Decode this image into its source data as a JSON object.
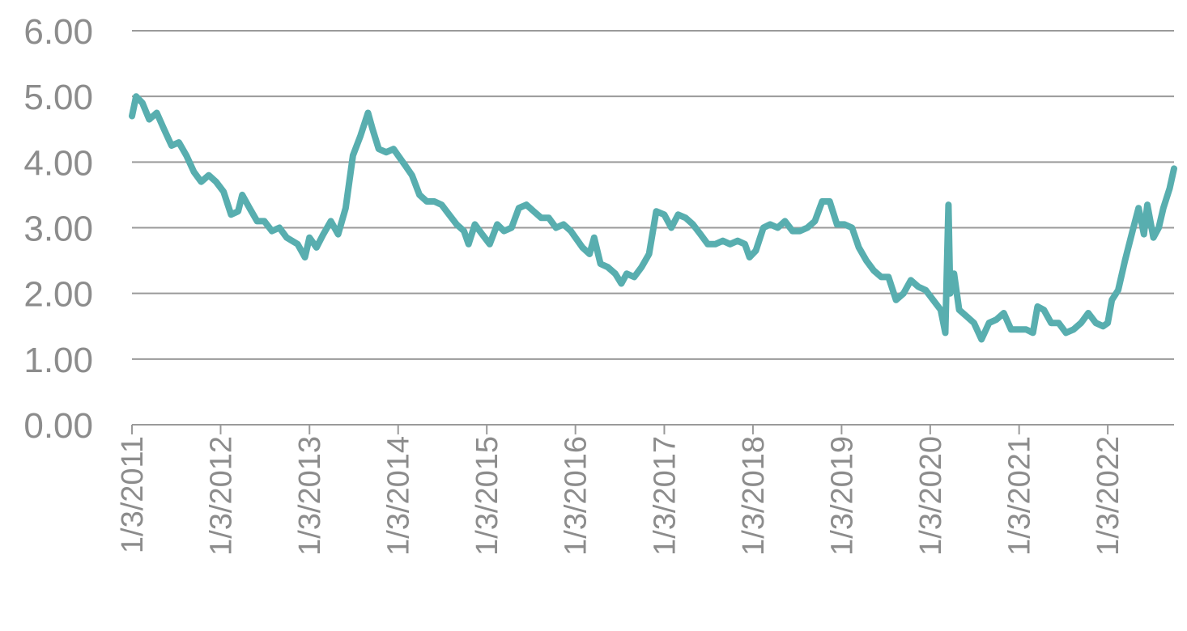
{
  "chart_data": {
    "type": "line",
    "color": "#58aeaf",
    "grid": true,
    "ylim": [
      0,
      6
    ],
    "yticks": [
      {
        "value": 0,
        "label": "0.00"
      },
      {
        "value": 1,
        "label": "1.00"
      },
      {
        "value": 2,
        "label": "2.00"
      },
      {
        "value": 3,
        "label": "3.00"
      },
      {
        "value": 4,
        "label": "4.00"
      },
      {
        "value": 5,
        "label": "5.00"
      },
      {
        "value": 6,
        "label": "6.00"
      }
    ],
    "xlim": [
      "2011-01-03",
      "2022-10-03"
    ],
    "xticks": [
      {
        "value": "2011-01-03",
        "label": "1/3/2011"
      },
      {
        "value": "2012-01-03",
        "label": "1/3/2012"
      },
      {
        "value": "2013-01-03",
        "label": "1/3/2013"
      },
      {
        "value": "2014-01-03",
        "label": "1/3/2014"
      },
      {
        "value": "2015-01-03",
        "label": "1/3/2015"
      },
      {
        "value": "2016-01-03",
        "label": "1/3/2016"
      },
      {
        "value": "2017-01-03",
        "label": "1/3/2017"
      },
      {
        "value": "2018-01-03",
        "label": "1/3/2018"
      },
      {
        "value": "2019-01-03",
        "label": "1/3/2019"
      },
      {
        "value": "2020-01-03",
        "label": "1/3/2020"
      },
      {
        "value": "2021-01-03",
        "label": "1/3/2021"
      },
      {
        "value": "2022-01-03",
        "label": "1/3/2022"
      }
    ],
    "x": [
      "2011-01-03",
      "2011-01-20",
      "2011-02-15",
      "2011-03-15",
      "2011-04-15",
      "2011-05-15",
      "2011-06-15",
      "2011-07-15",
      "2011-08-15",
      "2011-09-15",
      "2011-10-15",
      "2011-11-15",
      "2011-12-15",
      "2012-01-15",
      "2012-02-15",
      "2012-03-15",
      "2012-04-01",
      "2012-05-01",
      "2012-06-01",
      "2012-07-01",
      "2012-08-01",
      "2012-09-01",
      "2012-10-01",
      "2012-11-15",
      "2012-12-15",
      "2013-01-03",
      "2013-02-01",
      "2013-03-01",
      "2013-04-01",
      "2013-05-01",
      "2013-06-01",
      "2013-07-01",
      "2013-08-01",
      "2013-09-01",
      "2013-09-20",
      "2013-10-15",
      "2013-11-15",
      "2013-12-15",
      "2014-01-03",
      "2014-02-01",
      "2014-03-01",
      "2014-04-01",
      "2014-05-01",
      "2014-06-01",
      "2014-07-01",
      "2014-08-01",
      "2014-09-01",
      "2014-10-01",
      "2014-10-20",
      "2014-11-15",
      "2014-12-15",
      "2015-01-15",
      "2015-02-15",
      "2015-03-15",
      "2015-04-15",
      "2015-05-15",
      "2015-06-15",
      "2015-07-15",
      "2015-08-15",
      "2015-09-15",
      "2015-10-15",
      "2015-11-15",
      "2015-12-15",
      "2016-01-03",
      "2016-02-01",
      "2016-03-01",
      "2016-03-20",
      "2016-04-15",
      "2016-05-15",
      "2016-06-15",
      "2016-07-10",
      "2016-08-01",
      "2016-09-01",
      "2016-10-01",
      "2016-11-01",
      "2016-12-01",
      "2017-01-03",
      "2017-02-01",
      "2017-03-01",
      "2017-04-01",
      "2017-05-01",
      "2017-06-01",
      "2017-07-01",
      "2017-08-01",
      "2017-09-01",
      "2017-10-01",
      "2017-11-01",
      "2017-12-01",
      "2017-12-20",
      "2018-01-15",
      "2018-02-15",
      "2018-03-15",
      "2018-04-15",
      "2018-05-15",
      "2018-06-15",
      "2018-07-15",
      "2018-08-15",
      "2018-09-15",
      "2018-10-15",
      "2018-11-15",
      "2018-12-15",
      "2019-01-15",
      "2019-02-15",
      "2019-03-15",
      "2019-04-15",
      "2019-05-15",
      "2019-06-15",
      "2019-07-15",
      "2019-08-15",
      "2019-09-15",
      "2019-10-15",
      "2019-11-15",
      "2019-12-15",
      "2020-01-15",
      "2020-02-15",
      "2020-03-05",
      "2020-03-18",
      "2020-03-25",
      "2020-04-10",
      "2020-05-01",
      "2020-06-01",
      "2020-07-01",
      "2020-08-01",
      "2020-09-01",
      "2020-10-01",
      "2020-11-01",
      "2020-12-01",
      "2021-01-03",
      "2021-02-01",
      "2021-03-01",
      "2021-03-20",
      "2021-04-15",
      "2021-05-15",
      "2021-06-15",
      "2021-07-15",
      "2021-08-15",
      "2021-09-15",
      "2021-10-15",
      "2021-11-15",
      "2021-12-15",
      "2022-01-03",
      "2022-01-20",
      "2022-02-15",
      "2022-03-15",
      "2022-04-15",
      "2022-05-10",
      "2022-06-01",
      "2022-06-15",
      "2022-07-10",
      "2022-08-01",
      "2022-08-20",
      "2022-09-15",
      "2022-10-03"
    ],
    "values": [
      4.7,
      5.0,
      4.9,
      4.65,
      4.75,
      4.5,
      4.25,
      4.3,
      4.1,
      3.85,
      3.7,
      3.8,
      3.7,
      3.55,
      3.2,
      3.25,
      3.5,
      3.3,
      3.1,
      3.1,
      2.95,
      3.0,
      2.85,
      2.75,
      2.55,
      2.85,
      2.7,
      2.9,
      3.1,
      2.9,
      3.3,
      4.1,
      4.4,
      4.75,
      4.5,
      4.2,
      4.15,
      4.2,
      4.1,
      3.95,
      3.8,
      3.5,
      3.4,
      3.4,
      3.35,
      3.2,
      3.05,
      2.95,
      2.75,
      3.05,
      2.9,
      2.75,
      3.05,
      2.95,
      3.0,
      3.3,
      3.35,
      3.25,
      3.15,
      3.15,
      3.0,
      3.05,
      2.95,
      2.85,
      2.7,
      2.6,
      2.85,
      2.45,
      2.4,
      2.3,
      2.15,
      2.3,
      2.25,
      2.4,
      2.6,
      3.25,
      3.2,
      3.0,
      3.2,
      3.15,
      3.05,
      2.9,
      2.75,
      2.75,
      2.8,
      2.75,
      2.8,
      2.75,
      2.55,
      2.65,
      3.0,
      3.05,
      3.0,
      3.1,
      2.95,
      2.95,
      3.0,
      3.1,
      3.4,
      3.4,
      3.05,
      3.05,
      3.0,
      2.7,
      2.5,
      2.35,
      2.25,
      2.25,
      1.9,
      2.0,
      2.2,
      2.1,
      2.05,
      1.9,
      1.75,
      1.4,
      3.35,
      2.0,
      2.3,
      1.75,
      1.65,
      1.55,
      1.3,
      1.55,
      1.6,
      1.7,
      1.45,
      1.45,
      1.45,
      1.4,
      1.8,
      1.75,
      1.55,
      1.55,
      1.4,
      1.45,
      1.55,
      1.7,
      1.55,
      1.5,
      1.55,
      1.9,
      2.05,
      2.5,
      2.95,
      3.3,
      2.9,
      3.35,
      2.85,
      3.0,
      3.3,
      3.6,
      3.9
    ]
  }
}
